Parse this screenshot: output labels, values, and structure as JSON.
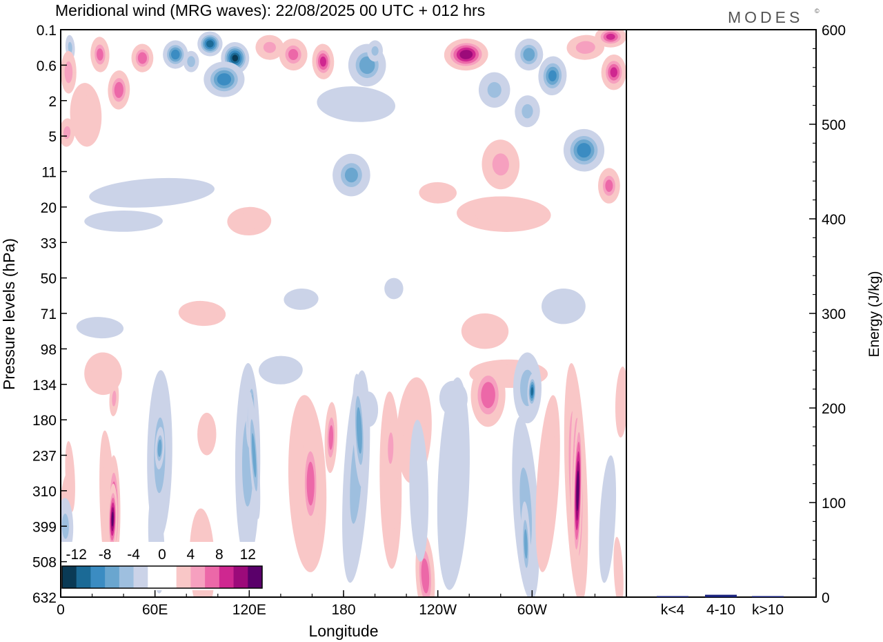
{
  "chart_data": {
    "type": "heatmap",
    "title": "Meridional wind (MRG waves):  22/08/2025  00 UTC  + 012 hrs",
    "brand": "MODES",
    "brand_mark": "©",
    "xlabel": "Longitude",
    "ylabel": "Pressure levels (hPa)",
    "x_ticks": [
      "0",
      "60E",
      "120E",
      "180",
      "120W",
      "60W"
    ],
    "x_tick_degrees": [
      0,
      60,
      120,
      180,
      240,
      300
    ],
    "xlim": [
      0,
      360
    ],
    "y_ticks": [
      "0.1",
      "0.6",
      "2",
      "5",
      "11",
      "20",
      "33",
      "50",
      "71",
      "98",
      "134",
      "180",
      "237",
      "310",
      "399",
      "508",
      "632"
    ],
    "colorbar": {
      "labels": [
        "-12",
        "-8",
        "-4",
        "0",
        "4",
        "8",
        "12"
      ],
      "levels": [
        -14,
        -12,
        -10,
        -8,
        -6,
        -4,
        -2,
        2,
        4,
        6,
        8,
        10,
        12,
        14
      ],
      "colors": [
        "#0a3a55",
        "#1b6a96",
        "#3b8cc2",
        "#6aa6cf",
        "#9ebfdf",
        "#cbd3e8",
        "#ffffff",
        "#ffffff",
        "#f9c7c7",
        "#f6a0bf",
        "#ec68a8",
        "#cf2790",
        "#9c0a7a",
        "#5a006a"
      ]
    },
    "contour_blobs": [
      {
        "lon": 6,
        "lev": 0.5,
        "rlon": 3,
        "rlev": 0.35,
        "v": -5
      },
      {
        "lon": 25,
        "lev": 0.7,
        "rlon": 6,
        "rlev": 0.5,
        "v": 7
      },
      {
        "lon": 5,
        "lev": 1.2,
        "rlon": 5,
        "rlev": 0.6,
        "v": 6
      },
      {
        "lon": 37,
        "lev": 1.7,
        "rlon": 7,
        "rlev": 0.55,
        "v": 8
      },
      {
        "lon": 4,
        "lev": 2.9,
        "rlon": 5,
        "rlev": 0.4,
        "v": 5
      },
      {
        "lon": 16,
        "lev": 2.4,
        "rlon": 10,
        "rlev": 0.9,
        "v": 3
      },
      {
        "lon": 52,
        "lev": 0.8,
        "rlon": 7,
        "rlev": 0.4,
        "v": 8
      },
      {
        "lon": 73,
        "lev": 0.7,
        "rlon": 8,
        "rlev": 0.4,
        "v": -10
      },
      {
        "lon": 95,
        "lev": 0.4,
        "rlon": 8,
        "rlev": 0.35,
        "v": -12
      },
      {
        "lon": 111,
        "lev": 0.8,
        "rlon": 9,
        "rlev": 0.45,
        "v": -13
      },
      {
        "lon": 104,
        "lev": 1.4,
        "rlon": 13,
        "rlev": 0.5,
        "v": -10
      },
      {
        "lon": 83,
        "lev": 0.9,
        "rlon": 5,
        "rlev": 0.3,
        "v": -6
      },
      {
        "lon": 133,
        "lev": 0.5,
        "rlon": 9,
        "rlev": 0.35,
        "v": 5
      },
      {
        "lon": 148,
        "lev": 0.7,
        "rlon": 9,
        "rlev": 0.45,
        "v": 7
      },
      {
        "lon": 167,
        "lev": 0.9,
        "rlon": 7,
        "rlev": 0.5,
        "v": 9
      },
      {
        "lon": 195,
        "lev": 1.0,
        "rlon": 12,
        "rlev": 0.6,
        "v": -8
      },
      {
        "lon": 200,
        "lev": 0.6,
        "rlon": 5,
        "rlev": 0.3,
        "v": -5
      },
      {
        "lon": 188,
        "lev": 2.1,
        "rlon": 25,
        "rlev": 0.5,
        "v": -3
      },
      {
        "lon": 258,
        "lev": 0.7,
        "rlon": 14,
        "rlev": 0.45,
        "v": 12
      },
      {
        "lon": 276,
        "lev": 1.7,
        "rlon": 10,
        "rlev": 0.5,
        "v": -5
      },
      {
        "lon": 298,
        "lev": 0.7,
        "rlon": 9,
        "rlev": 0.45,
        "v": -8
      },
      {
        "lon": 313,
        "lev": 1.3,
        "rlon": 9,
        "rlev": 0.55,
        "v": -9
      },
      {
        "lon": 334,
        "lev": 0.5,
        "rlon": 12,
        "rlev": 0.35,
        "v": 6
      },
      {
        "lon": 350,
        "lev": 0.2,
        "rlon": 10,
        "rlev": 0.3,
        "v": 9
      },
      {
        "lon": 352,
        "lev": 1.2,
        "rlon": 8,
        "rlev": 0.5,
        "v": 9
      },
      {
        "lon": 297,
        "lev": 2.3,
        "rlon": 8,
        "rlev": 0.45,
        "v": -5
      },
      {
        "lon": 333,
        "lev": 3.4,
        "rlon": 13,
        "rlev": 0.6,
        "v": -10
      },
      {
        "lon": 280,
        "lev": 3.8,
        "rlon": 12,
        "rlev": 0.7,
        "v": 5
      },
      {
        "lon": 349,
        "lev": 4.4,
        "rlon": 7,
        "rlev": 0.5,
        "v": 7
      },
      {
        "lon": 185,
        "lev": 4.1,
        "rlon": 12,
        "rlev": 0.6,
        "v": -7
      },
      {
        "lon": 58,
        "lev": 4.6,
        "rlon": 40,
        "rlev": 0.4,
        "v": -3
      },
      {
        "lon": 120,
        "lev": 5.4,
        "rlon": 14,
        "rlev": 0.4,
        "v": 3
      },
      {
        "lon": 40,
        "lev": 5.4,
        "rlon": 25,
        "rlev": 0.3,
        "v": -3
      },
      {
        "lon": 282,
        "lev": 5.2,
        "rlon": 30,
        "rlev": 0.5,
        "v": 3
      },
      {
        "lon": 90,
        "lev": 8.0,
        "rlon": 15,
        "rlev": 0.35,
        "v": 3
      },
      {
        "lon": 153,
        "lev": 7.6,
        "rlon": 11,
        "rlev": 0.3,
        "v": -3
      },
      {
        "lon": 320,
        "lev": 7.8,
        "rlon": 14,
        "rlev": 0.5,
        "v": -3
      },
      {
        "lon": 270,
        "lev": 8.5,
        "rlon": 15,
        "rlev": 0.5,
        "v": 3
      },
      {
        "lon": 25,
        "lev": 8.4,
        "rlon": 15,
        "rlev": 0.3,
        "v": -3
      },
      {
        "lon": 27,
        "lev": 9.7,
        "rlon": 12,
        "rlev": 0.6,
        "v": 3
      },
      {
        "lon": 140,
        "lev": 9.6,
        "rlon": 14,
        "rlev": 0.4,
        "v": -3
      },
      {
        "lon": 285,
        "lev": 9.7,
        "rlon": 25,
        "rlev": 0.4,
        "v": 4
      },
      {
        "lon": 293,
        "lev": 9.8,
        "rlon": 8,
        "rlev": 0.3,
        "v": 6
      },
      {
        "lon": 250,
        "lev": 10.4,
        "rlon": 9,
        "rlev": 0.5,
        "v": -3
      },
      {
        "lon": 196,
        "lev": 10.7,
        "rlon": 6,
        "rlev": 0.5,
        "v": -3
      },
      {
        "lon": 93,
        "lev": 11.4,
        "rlon": 6,
        "rlev": 0.6,
        "v": 3
      },
      {
        "lon": 357,
        "lev": 10.5,
        "rlon": 4,
        "rlev": 1.0,
        "v": 3
      },
      {
        "lon": 3,
        "lev": 13.6,
        "rlon": 4,
        "rlev": 1.1,
        "v": 3
      },
      {
        "lon": 30,
        "lev": 13.5,
        "rlon": 5,
        "rlev": 2.2,
        "v": 4
      },
      {
        "lon": 34,
        "lev": 13.5,
        "rlon": 4,
        "rlev": 1.5,
        "v": 10
      },
      {
        "lon": 33,
        "lev": 13.8,
        "rlon": 3,
        "rlev": 1.0,
        "v": 13
      },
      {
        "lon": 34,
        "lev": 10.4,
        "rlon": 3,
        "rlev": 0.5,
        "v": 5
      },
      {
        "lon": 6,
        "lev": 12.6,
        "rlon": 3,
        "rlev": 1.0,
        "v": 4
      },
      {
        "lon": 3,
        "lev": 14.0,
        "rlon": 5,
        "rlev": 0.8,
        "v": -5
      },
      {
        "lon": 63,
        "lev": 12.0,
        "rlon": 8,
        "rlev": 2.4,
        "v": -5
      },
      {
        "lon": 63,
        "lev": 11.8,
        "rlon": 3,
        "rlev": 0.6,
        "v": -8
      },
      {
        "lon": 61,
        "lev": 14.5,
        "rlon": 5,
        "rlev": 1.4,
        "v": -4
      },
      {
        "lon": 90,
        "lev": 15.0,
        "rlon": 8,
        "rlev": 1.5,
        "v": 3
      },
      {
        "lon": 119,
        "lev": 12.2,
        "rlon": 8,
        "rlev": 2.8,
        "v": -5
      },
      {
        "lon": 121,
        "lev": 10.8,
        "rlon": 3,
        "rlev": 1.0,
        "v": -10
      },
      {
        "lon": 123,
        "lev": 12.0,
        "rlon": 3,
        "rlev": 1.8,
        "v": -7
      },
      {
        "lon": 157,
        "lev": 12.8,
        "rlon": 12,
        "rlev": 2.5,
        "v": 4
      },
      {
        "lon": 159,
        "lev": 12.8,
        "rlon": 6,
        "rlev": 1.5,
        "v": 8
      },
      {
        "lon": 172,
        "lev": 11.5,
        "rlon": 4,
        "rlev": 1.0,
        "v": 7
      },
      {
        "lon": 188,
        "lev": 12.6,
        "rlon": 8,
        "rlev": 3.0,
        "v": -5
      },
      {
        "lon": 190,
        "lev": 11.3,
        "rlon": 4,
        "rlev": 1.6,
        "v": -8
      },
      {
        "lon": 210,
        "lev": 12.7,
        "rlon": 7,
        "rlev": 2.5,
        "v": 3
      },
      {
        "lon": 210,
        "lev": 11.8,
        "rlon": 4,
        "rlev": 1.0,
        "v": 5
      },
      {
        "lon": 225,
        "lev": 11.3,
        "rlon": 11,
        "rlev": 1.5,
        "v": 3
      },
      {
        "lon": 232,
        "lev": 15.4,
        "rlon": 6,
        "rlev": 1.2,
        "v": 8
      },
      {
        "lon": 228,
        "lev": 13.0,
        "rlon": 6,
        "rlev": 2.0,
        "v": -3
      },
      {
        "lon": 272,
        "lev": 10.3,
        "rlon": 11,
        "rlev": 0.9,
        "v": 8
      },
      {
        "lon": 250,
        "lev": 12.8,
        "rlon": 10,
        "rlev": 3.0,
        "v": -3
      },
      {
        "lon": 296,
        "lev": 13.5,
        "rlon": 8,
        "rlev": 2.6,
        "v": -5
      },
      {
        "lon": 296,
        "lev": 14.5,
        "rlon": 3,
        "rlev": 1.2,
        "v": -7
      },
      {
        "lon": 297,
        "lev": 10.1,
        "rlon": 9,
        "rlev": 1.0,
        "v": -6
      },
      {
        "lon": 300,
        "lev": 10.2,
        "rlon": 3,
        "rlev": 0.5,
        "v": -11
      },
      {
        "lon": 310,
        "lev": 12.8,
        "rlon": 7,
        "rlev": 2.5,
        "v": 3
      },
      {
        "lon": 328,
        "lev": 12.8,
        "rlon": 7,
        "rlev": 3.4,
        "v": 8
      },
      {
        "lon": 329,
        "lev": 12.9,
        "rlon": 4.5,
        "rlev": 2.8,
        "v": 11
      },
      {
        "lon": 329,
        "lev": 13.0,
        "rlon": 3,
        "rlev": 2.2,
        "v": 14
      },
      {
        "lon": 348,
        "lev": 13.8,
        "rlon": 5,
        "rlev": 1.8,
        "v": -4
      },
      {
        "lon": 355,
        "lev": 15.3,
        "rlon": 3,
        "rlev": 1.0,
        "v": 3
      },
      {
        "lon": 212,
        "lev": 7.3,
        "rlon": 6,
        "rlev": 0.3,
        "v": -3
      },
      {
        "lon": 240,
        "lev": 4.6,
        "rlon": 12,
        "rlev": 0.3,
        "v": 3
      }
    ],
    "energy_panel": {
      "ylabel": "Energy (J/kg)",
      "ylim": [
        0,
        600
      ],
      "y_ticks": [
        "0",
        "100",
        "200",
        "300",
        "400",
        "500",
        "600"
      ],
      "categories": [
        "k<4",
        "4-10",
        "k>10"
      ],
      "values": [
        0.5,
        2.5,
        0.4
      ],
      "bar_color": "#1a237e"
    }
  }
}
